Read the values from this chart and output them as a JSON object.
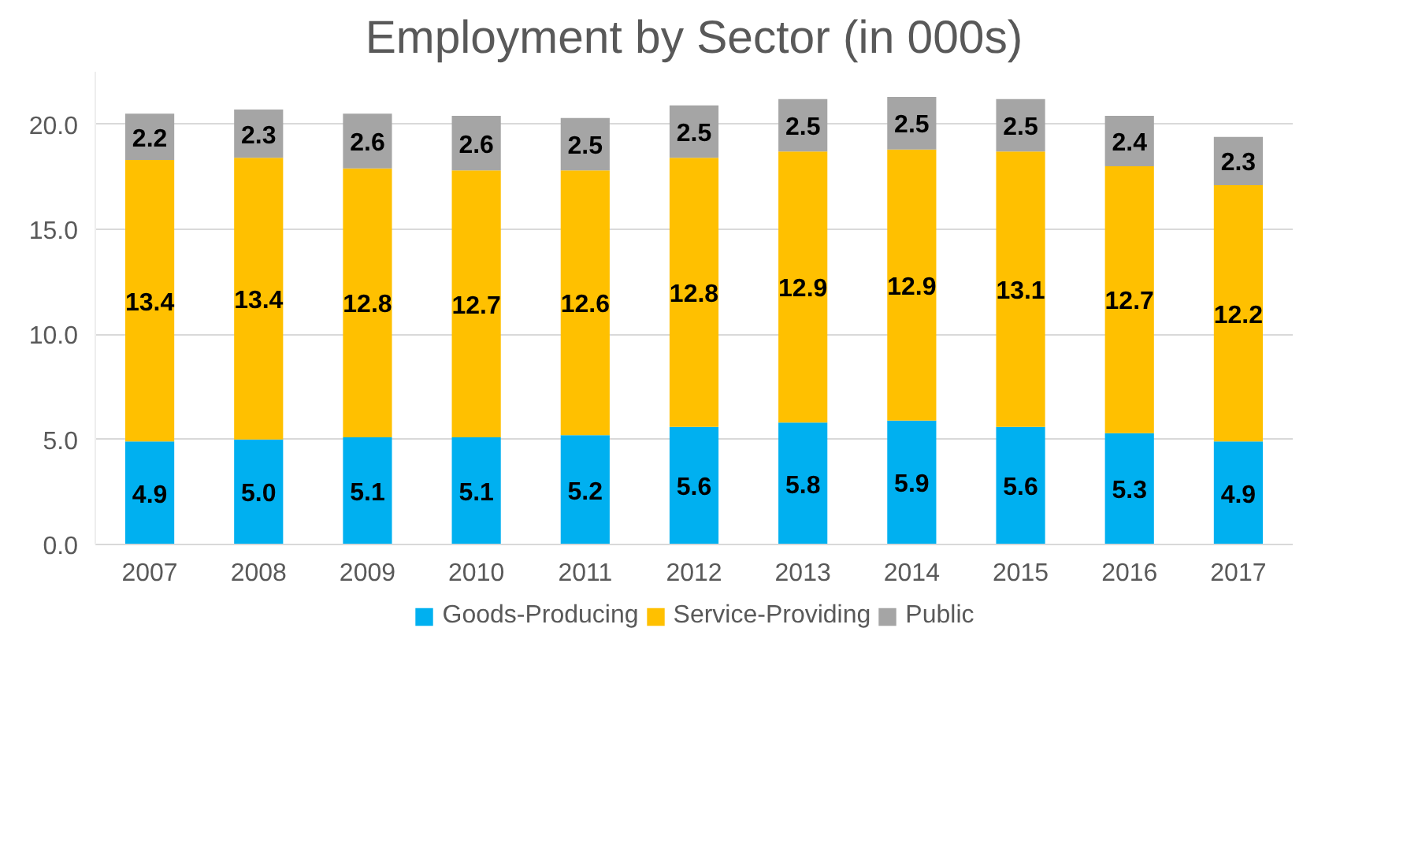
{
  "chart_data": {
    "type": "bar",
    "title": "Employment by Sector (in 000s)",
    "stacked": true,
    "categories": [
      "2007",
      "2008",
      "2009",
      "2010",
      "2011",
      "2012",
      "2013",
      "2014",
      "2015",
      "2016",
      "2017"
    ],
    "series": [
      {
        "name": "Goods-Producing",
        "color": "#00b0f0",
        "values": [
          4.9,
          5.0,
          5.1,
          5.1,
          5.2,
          5.6,
          5.8,
          5.9,
          5.6,
          5.3,
          4.9
        ],
        "value_labels": [
          "4.9",
          "5.0",
          "5.1",
          "5.1",
          "5.2",
          "5.6",
          "5.8",
          "5.9",
          "5.6",
          "5.3",
          "4.9"
        ]
      },
      {
        "name": "Service-Providing",
        "color": "#ffc000",
        "values": [
          13.4,
          13.4,
          12.8,
          12.7,
          12.6,
          12.8,
          12.9,
          12.9,
          13.1,
          12.7,
          12.2
        ],
        "value_labels": [
          "13.4",
          "13.4",
          "12.8",
          "12.7",
          "12.6",
          "12.8",
          "12.9",
          "12.9",
          "13.1",
          "12.7",
          "12.2"
        ]
      },
      {
        "name": "Public",
        "color": "#a5a5a5",
        "values": [
          2.2,
          2.3,
          2.6,
          2.6,
          2.5,
          2.5,
          2.5,
          2.5,
          2.5,
          2.4,
          2.3
        ],
        "value_labels": [
          "2.2",
          "2.3",
          "2.6",
          "2.6",
          "2.5",
          "2.5",
          "2.5",
          "2.5",
          "2.5",
          "2.4",
          "2.3"
        ]
      }
    ],
    "ylim": [
      0,
      22.5
    ],
    "yticks": [
      {
        "value": 0,
        "label": "0.0"
      },
      {
        "value": 5,
        "label": "5.0"
      },
      {
        "value": 10,
        "label": "10.0"
      },
      {
        "value": 15,
        "label": "15.0"
      },
      {
        "value": 20,
        "label": "20.0"
      }
    ],
    "grid": "y",
    "legend": "bottom",
    "data_labels": true
  }
}
